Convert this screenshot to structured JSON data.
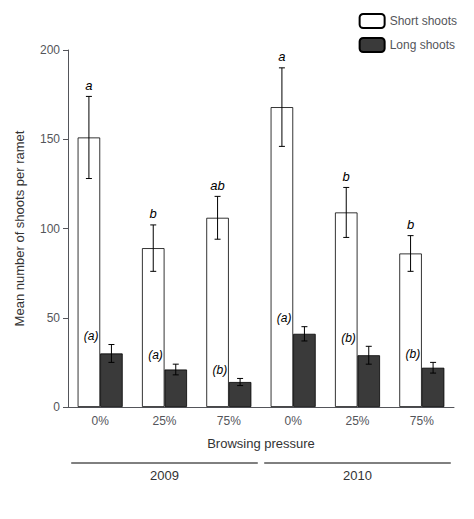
{
  "chart_data": {
    "type": "bar",
    "xlabel": "Browsing pressure",
    "ylabel": "Mean number of shoots per ramet",
    "categories": [
      "0%",
      "25%",
      "75%",
      "0%",
      "25%",
      "75%"
    ],
    "category_groups": [
      "2009",
      "2009",
      "2009",
      "2010",
      "2010",
      "2010"
    ],
    "series": [
      {
        "name": "Short shoots",
        "color": "#ffffff",
        "values": [
          151,
          89,
          106,
          168,
          109,
          86
        ],
        "errors": [
          23,
          13,
          12,
          22,
          14,
          10
        ],
        "labels": [
          "a",
          "b",
          "ab",
          "a",
          "b",
          "b"
        ]
      },
      {
        "name": "Long shoots",
        "color": "#3a3a3a",
        "values": [
          30,
          21,
          14,
          41,
          29,
          22
        ],
        "errors": [
          5,
          3,
          2,
          4,
          5,
          3
        ],
        "labels": [
          "(a)",
          "(a)",
          "(b)",
          "(a)",
          "(b)",
          "(b)"
        ]
      }
    ],
    "ylim": [
      0,
      200
    ],
    "yticks": [
      0,
      50,
      100,
      150,
      200
    ],
    "grid": false,
    "legend": "upper right"
  }
}
